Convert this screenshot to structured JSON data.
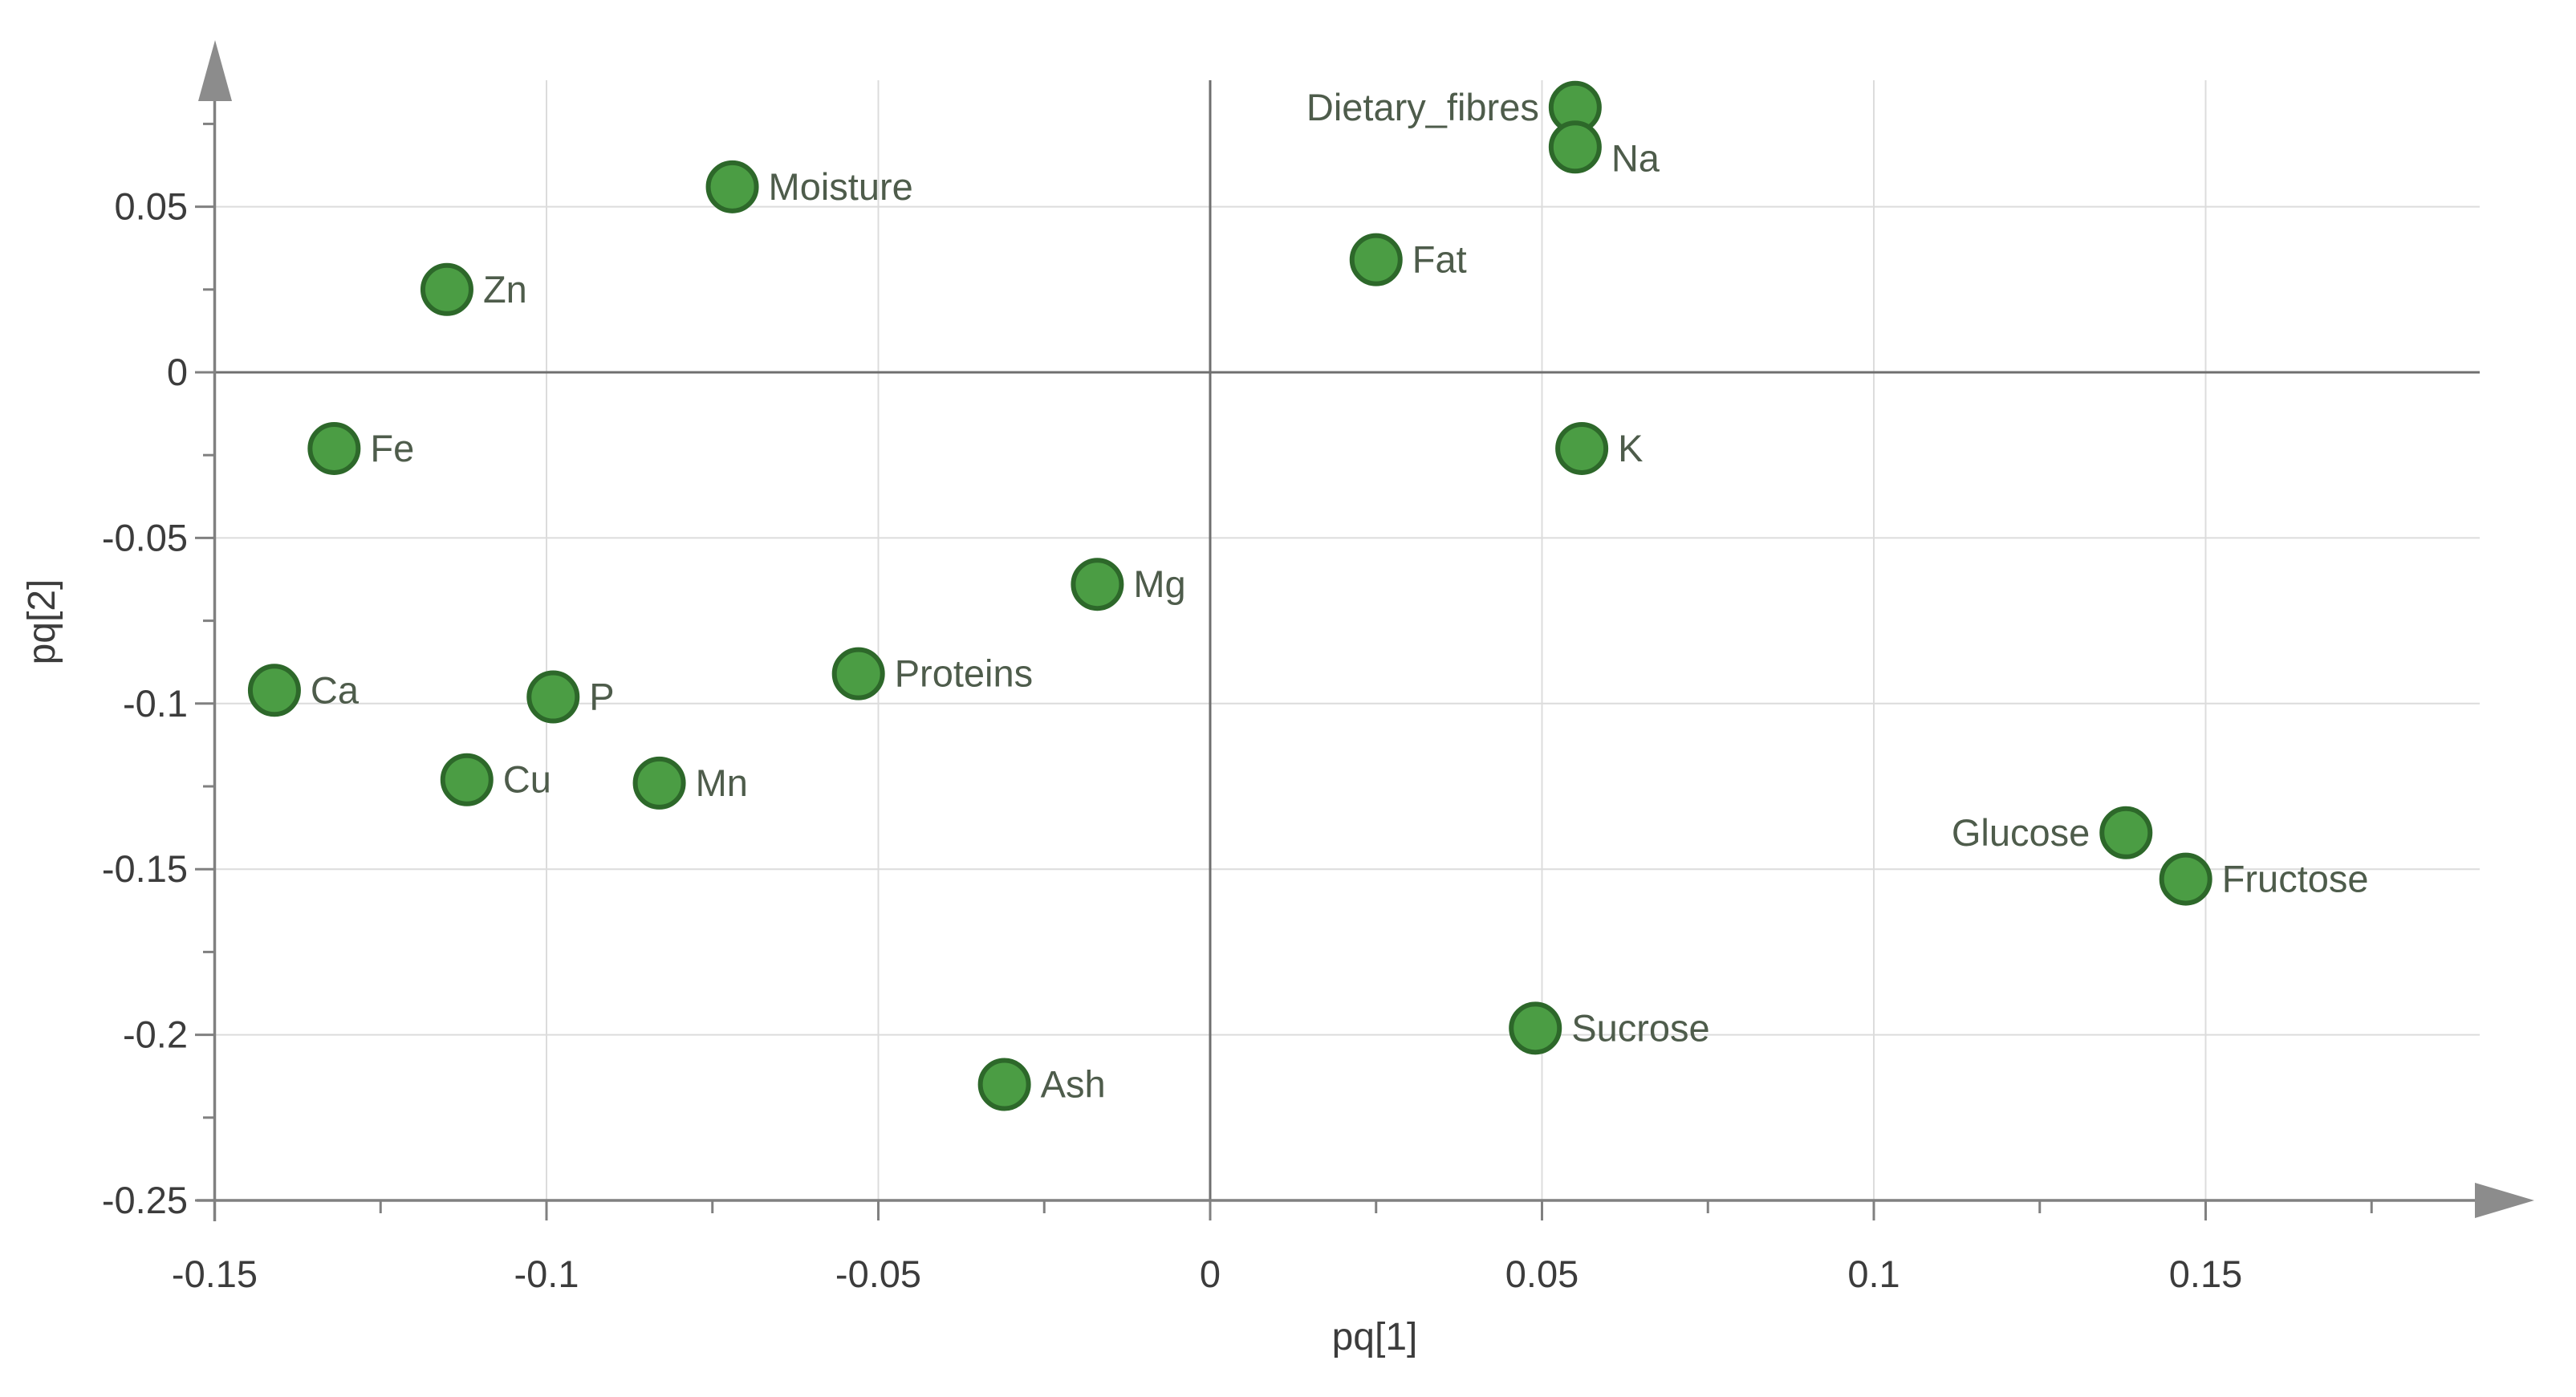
{
  "chart_data": {
    "type": "scatter",
    "title": "",
    "xlabel": "pq[1]",
    "ylabel": "pq[2]",
    "xlim": [
      -0.15,
      0.2
    ],
    "ylim": [
      -0.25,
      0.1
    ],
    "grid": true,
    "legend_position": "none",
    "x_ticks": {
      "values": [
        -0.15,
        -0.1,
        -0.05,
        0,
        0.05,
        0.1,
        0.15
      ],
      "labels": [
        "-0.15",
        "-0.1",
        "-0.05",
        "0",
        "0.05",
        "0.1",
        "0.15"
      ]
    },
    "x_minor_ticks": [
      -0.125,
      -0.075,
      -0.025,
      0.025,
      0.075,
      0.125,
      0.175
    ],
    "y_ticks": {
      "values": [
        0.05,
        0,
        -0.05,
        -0.1,
        -0.15,
        -0.2,
        -0.25
      ],
      "labels": [
        "0.05",
        "0",
        "-0.05",
        "-0.1",
        "-0.15",
        "-0.2",
        "-0.25"
      ]
    },
    "y_minor_ticks": [
      0.075,
      0.025,
      -0.025,
      -0.075,
      -0.125,
      -0.175,
      -0.225
    ],
    "x_gridlines": [
      -0.1,
      -0.05,
      0.05,
      0.1,
      0.15
    ],
    "y_gridlines": [
      0.05,
      -0.05,
      -0.1,
      -0.15,
      -0.2
    ],
    "zero_lines": {
      "x": 0,
      "y": 0
    },
    "series": [
      {
        "name": "loadings",
        "points": [
          {
            "label": "Moisture",
            "x": -0.072,
            "y": 0.056,
            "label_side": "right"
          },
          {
            "label": "Zn",
            "x": -0.115,
            "y": 0.025,
            "label_side": "right"
          },
          {
            "label": "Fe",
            "x": -0.132,
            "y": -0.023,
            "label_side": "right"
          },
          {
            "label": "Ca",
            "x": -0.141,
            "y": -0.096,
            "label_side": "right"
          },
          {
            "label": "P",
            "x": -0.099,
            "y": -0.098,
            "label_side": "right"
          },
          {
            "label": "Cu",
            "x": -0.112,
            "y": -0.123,
            "label_side": "right"
          },
          {
            "label": "Mn",
            "x": -0.083,
            "y": -0.124,
            "label_side": "right"
          },
          {
            "label": "Proteins",
            "x": -0.053,
            "y": -0.091,
            "label_side": "right"
          },
          {
            "label": "Mg",
            "x": -0.017,
            "y": -0.064,
            "label_side": "right"
          },
          {
            "label": "Ash",
            "x": -0.031,
            "y": -0.215,
            "label_side": "right"
          },
          {
            "label": "Dietary_fibres",
            "x": 0.055,
            "y": 0.08,
            "label_side": "left"
          },
          {
            "label": "Na",
            "x": 0.055,
            "y": 0.068,
            "label_side": "right",
            "label_dy": 14
          },
          {
            "label": "Fat",
            "x": 0.025,
            "y": 0.034,
            "label_side": "right"
          },
          {
            "label": "K",
            "x": 0.056,
            "y": -0.023,
            "label_side": "right"
          },
          {
            "label": "Sucrose",
            "x": 0.049,
            "y": -0.198,
            "label_side": "right"
          },
          {
            "label": "Glucose",
            "x": 0.138,
            "y": -0.139,
            "label_side": "left"
          },
          {
            "label": "Fructose",
            "x": 0.147,
            "y": -0.153,
            "label_side": "right"
          }
        ]
      }
    ]
  },
  "colors": {
    "background": "#ffffff",
    "point_fill": "#4b9d44",
    "point_stroke": "#2d682a",
    "point_label": "#4e5c4b",
    "gridline": "#dcdcdc",
    "zero_line": "#6f6f6f",
    "axis_line": "#808080",
    "arrow": "#8c8c8c",
    "tick": "#808080",
    "tick_label": "#3c3c3c"
  }
}
